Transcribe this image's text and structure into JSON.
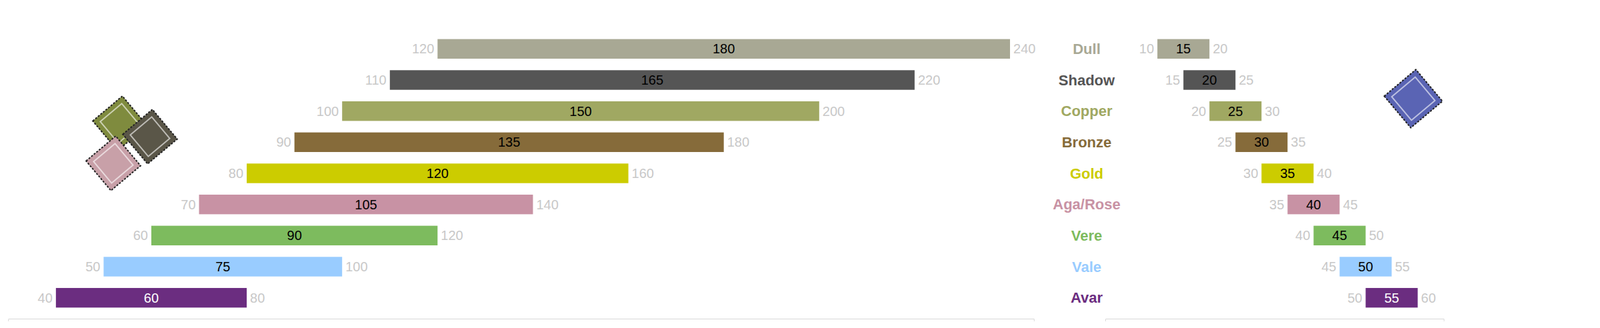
{
  "chart_data": [
    {
      "type": "bar",
      "orientation": "horizontal",
      "categories": [
        "Dull",
        "Shadow",
        "Copper",
        "Bronze",
        "Gold",
        "Aga/Rose",
        "Vere",
        "Vale",
        "Avar"
      ],
      "low": [
        120,
        110,
        100,
        90,
        80,
        70,
        60,
        50,
        40
      ],
      "high": [
        240,
        220,
        200,
        180,
        160,
        140,
        120,
        100,
        80
      ],
      "values": [
        180,
        165,
        150,
        135,
        120,
        105,
        90,
        75,
        60
      ],
      "colors": [
        "#a8a894",
        "#555555",
        "#a0a862",
        "#866b3a",
        "#cccc00",
        "#c892a4",
        "#7dbb5e",
        "#99ccff",
        "#6b2d80"
      ],
      "xlim": [
        30,
        245
      ],
      "tick_labels": false,
      "data_labels": true
    },
    {
      "type": "bar",
      "orientation": "horizontal",
      "low": [
        10,
        15,
        20,
        25,
        30,
        35,
        40,
        45,
        50
      ],
      "high": [
        20,
        25,
        30,
        35,
        40,
        45,
        50,
        55,
        60
      ],
      "values": [
        15,
        20,
        25,
        30,
        35,
        40,
        45,
        50,
        55
      ],
      "colors": [
        "#a8a894",
        "#555555",
        "#a0a862",
        "#866b3a",
        "#cccc00",
        "#c892a4",
        "#7dbb5e",
        "#99ccff",
        "#6b2d80"
      ],
      "xlim": [
        0,
        65
      ],
      "tick_labels": false,
      "data_labels": true
    }
  ]
}
